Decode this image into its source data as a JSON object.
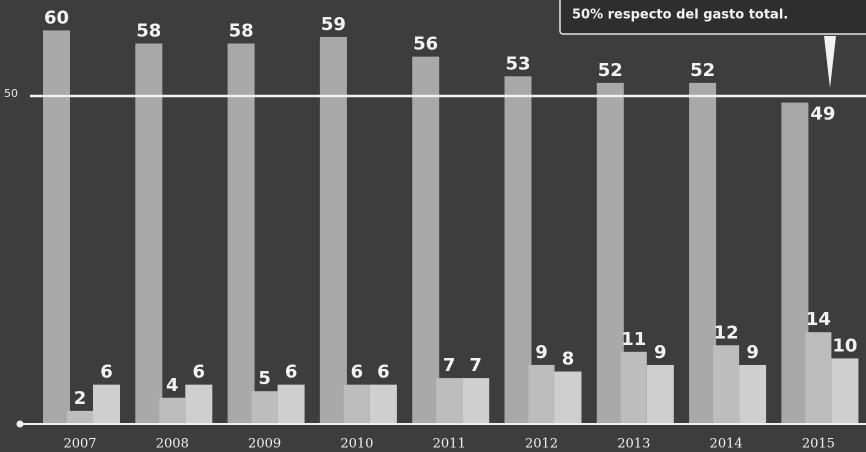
{
  "chart_data": {
    "type": "bar",
    "annotation": "50% respecto del gasto total.",
    "categories": [
      "2007",
      "2008",
      "2009",
      "2010",
      "2011",
      "2012",
      "2013",
      "2014",
      "2015"
    ],
    "series": [
      {
        "color": "#a9a9a9",
        "values": [
          60,
          58,
          58,
          59,
          56,
          53,
          52,
          52,
          49
        ]
      },
      {
        "color": "#bdbdbd",
        "values": [
          2,
          4,
          5,
          6,
          7,
          9,
          11,
          12,
          14
        ]
      },
      {
        "color": "#cfcfcf",
        "values": [
          6,
          6,
          6,
          6,
          7,
          8,
          9,
          9,
          10
        ]
      }
    ],
    "ylim": [
      0,
      65
    ],
    "yticks": [
      50
    ],
    "grid": true
  }
}
